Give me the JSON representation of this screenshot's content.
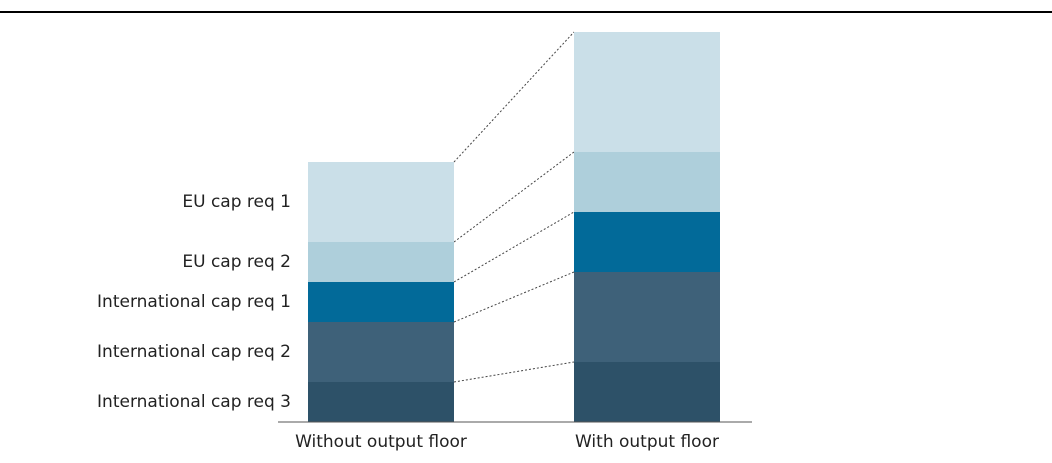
{
  "chart_data": {
    "type": "bar",
    "stacked": true,
    "title": "",
    "xlabel": "",
    "ylabel": "",
    "ylim": [
      0,
      390
    ],
    "grid": false,
    "legend": "labels-left",
    "categories": [
      "Without output floor",
      "With output floor"
    ],
    "series": [
      {
        "name": "International cap req 3",
        "values": [
          40,
          60
        ],
        "color": "#2d5168"
      },
      {
        "name": "International cap req 2",
        "values": [
          60,
          90
        ],
        "color": "#3e6179"
      },
      {
        "name": "International cap req 1",
        "values": [
          40,
          60
        ],
        "color": "#026a99"
      },
      {
        "name": "EU cap req 2",
        "values": [
          40,
          60
        ],
        "color": "#aecfdb"
      },
      {
        "name": "EU cap req 1",
        "values": [
          80,
          120
        ],
        "color": "#cadfe8"
      }
    ]
  },
  "colors": {
    "top_rule": "#000000",
    "baseline": "#555555",
    "connector": "#444444"
  }
}
